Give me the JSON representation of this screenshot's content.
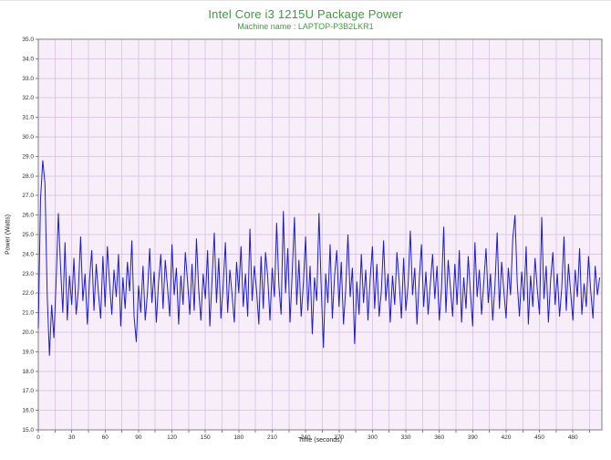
{
  "header": {
    "title": "Intel Core i3 1215U Package Power",
    "subtitle": "Machine name : LAPTOP-P3B2LKR1"
  },
  "colors": {
    "title_green": "#3e9b3e",
    "line_blue": "#1c1cce",
    "plot_background": "#f8eefa",
    "gridline": "#ddc8e8",
    "axis_border": "#7d7d7d",
    "tick_text": "#2b2b2b"
  },
  "chart_data": {
    "type": "line",
    "title": "Intel Core i3 1215U Package Power",
    "subtitle": "Machine name : LAPTOP-P3B2LKR1",
    "xlabel": "Time (seconds)",
    "ylabel": "Power (Watts)",
    "xlim": [
      0,
      506
    ],
    "ylim": [
      15.0,
      35.0
    ],
    "grid": "on",
    "legend": "none",
    "x_ticks": [
      0,
      30,
      60,
      90,
      120,
      150,
      180,
      210,
      240,
      270,
      300,
      330,
      360,
      390,
      420,
      450,
      480
    ],
    "x_minor_tick_interval": 15,
    "y_ticks": [
      35.0,
      34.0,
      33.0,
      32.0,
      31.0,
      30.0,
      29.0,
      28.0,
      27.0,
      26.0,
      25.0,
      24.0,
      23.0,
      22.0,
      21.0,
      20.0,
      19.0,
      18.0,
      17.0,
      16.0,
      15.0
    ],
    "y_tick_decimals": 1,
    "series": [
      {
        "name": "Package Power (Watts)",
        "x_start": 0,
        "x_interval": 2,
        "values": [
          20.2,
          26.8,
          28.8,
          27.6,
          21.9,
          18.8,
          21.4,
          19.7,
          22.6,
          26.1,
          23.3,
          21.0,
          24.6,
          20.6,
          22.9,
          21.4,
          23.8,
          20.9,
          22.2,
          24.9,
          21.6,
          23.0,
          20.4,
          22.7,
          24.2,
          21.1,
          23.5,
          22.0,
          20.7,
          23.9,
          21.3,
          24.4,
          22.5,
          20.9,
          23.2,
          21.8,
          24.0,
          20.3,
          22.8,
          21.2,
          23.6,
          22.1,
          24.7,
          20.8,
          19.5,
          22.4,
          21.0,
          23.4,
          20.6,
          22.0,
          24.3,
          21.5,
          23.1,
          20.5,
          22.6,
          24.0,
          21.2,
          23.7,
          22.3,
          20.8,
          24.5,
          21.9,
          23.3,
          20.4,
          22.9,
          21.4,
          24.1,
          22.6,
          20.9,
          23.5,
          21.1,
          24.8,
          22.2,
          20.6,
          23.0,
          21.7,
          24.2,
          20.3,
          22.7,
          25.1,
          21.5,
          23.8,
          20.7,
          22.4,
          24.6,
          21.0,
          23.2,
          21.9,
          20.5,
          23.6,
          22.0,
          24.4,
          21.3,
          23.0,
          20.8,
          25.3,
          21.6,
          23.4,
          22.1,
          20.4,
          23.9,
          21.2,
          24.1,
          22.8,
          20.6,
          23.3,
          21.8,
          25.6,
          22.4,
          20.9,
          26.2,
          22.0,
          24.3,
          20.5,
          23.1,
          25.9,
          21.4,
          23.7,
          20.8,
          22.5,
          24.9,
          21.1,
          23.4,
          19.9,
          22.8,
          21.6,
          26.1,
          22.3,
          19.2,
          23.0,
          21.5,
          24.5,
          20.7,
          22.9,
          24.2,
          21.3,
          23.6,
          20.4,
          22.2,
          25.0,
          21.8,
          23.3,
          19.4,
          22.6,
          20.9,
          24.0,
          21.5,
          23.2,
          20.6,
          22.8,
          24.4,
          21.2,
          23.5,
          20.8,
          22.1,
          24.7,
          21.6,
          23.0,
          20.5,
          22.9,
          21.4,
          24.1,
          22.6,
          20.7,
          23.8,
          21.1,
          22.4,
          25.2,
          21.9,
          23.3,
          20.4,
          22.7,
          24.5,
          21.3,
          23.1,
          20.9,
          22.5,
          24.0,
          21.7,
          23.4,
          20.6,
          22.2,
          25.4,
          21.0,
          23.7,
          22.3,
          20.8,
          23.5,
          21.4,
          24.2,
          20.5,
          22.8,
          21.2,
          23.9,
          22.0,
          20.3,
          24.6,
          21.8,
          23.2,
          20.9,
          22.6,
          24.3,
          21.5,
          23.0,
          20.6,
          22.4,
          25.1,
          21.2,
          23.6,
          22.1,
          20.7,
          23.3,
          21.9,
          24.8,
          26.0,
          22.5,
          20.8,
          23.1,
          21.6,
          24.4,
          20.4,
          22.9,
          21.3,
          23.8,
          22.2,
          20.9,
          25.9,
          21.7,
          23.4,
          20.5,
          22.7,
          24.1,
          21.4,
          23.0,
          20.8,
          22.3,
          24.9,
          21.1,
          23.5,
          22.0,
          20.6,
          23.2,
          21.8,
          24.3,
          20.9,
          22.5,
          21.3,
          23.9,
          22.1,
          20.7,
          23.4,
          21.9,
          22.8
        ]
      }
    ]
  }
}
